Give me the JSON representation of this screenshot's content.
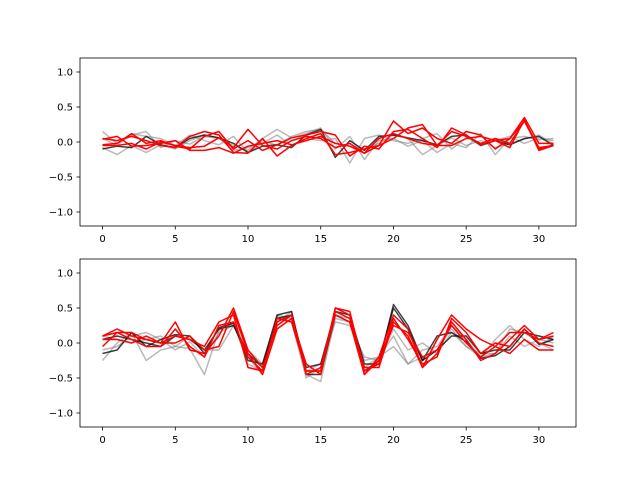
{
  "chart_data": [
    {
      "type": "line",
      "xlim": [
        -1.55,
        32.55
      ],
      "ylim": [
        -1.2,
        1.2
      ],
      "xticks": [
        0,
        5,
        10,
        15,
        20,
        25,
        30
      ],
      "xtick_labels": [
        "0",
        "5",
        "10",
        "15",
        "20",
        "25",
        "30"
      ],
      "yticks": [
        1.0,
        0.5,
        0.0,
        -0.5,
        -1.0
      ],
      "ytick_labels": [
        "1.0",
        "0.5",
        "0.0",
        "−0.5",
        "−1.0"
      ],
      "grid": false,
      "colors": {
        "faded": "#808080",
        "dark": "#000000",
        "red": "#ff0000"
      },
      "series": [
        {
          "color": "faded",
          "alpha": 0.55,
          "values": [
            0.15,
            -0.02,
            0.1,
            0.15,
            -0.08,
            0.02,
            -0.03,
            0.08,
            0.05,
            -0.05,
            -0.12,
            0.05,
            0.18,
            0.06,
            0.12,
            0.2,
            -0.1,
            0.08,
            -0.25,
            0.02,
            0.05,
            -0.06,
            0.02,
            -0.15,
            -0.02,
            -0.08,
            0.12,
            -0.18,
            0.05,
            0.08,
            0.03,
            0.05
          ]
        },
        {
          "color": "faded",
          "alpha": 0.55,
          "values": [
            -0.08,
            -0.18,
            -0.05,
            -0.15,
            -0.04,
            -0.1,
            0.02,
            0.1,
            0.06,
            -0.12,
            -0.08,
            0.02,
            -0.05,
            0.08,
            0.15,
            0.18,
            -0.02,
            -0.06,
            -0.1,
            -0.02,
            0.1,
            0.05,
            -0.18,
            -0.05,
            0.06,
            -0.05,
            0.02,
            -0.08,
            -0.02,
            0.04,
            0.1,
            -0.03
          ]
        },
        {
          "color": "faded",
          "alpha": 0.55,
          "values": [
            0.05,
            -0.05,
            0.12,
            0.08,
            0.05,
            -0.05,
            0.1,
            0.02,
            -0.04,
            0.08,
            -0.15,
            -0.02,
            0.1,
            -0.05,
            0.05,
            0.02,
            0.05,
            -0.3,
            0.05,
            0.1,
            0.02,
            -0.02,
            0.05,
            0.12,
            -0.1,
            0.06,
            -0.04,
            0.02,
            0.08,
            -0.02,
            0.06,
            0.02
          ]
        },
        {
          "color": "dark",
          "alpha": 0.75,
          "values": [
            -0.1,
            -0.06,
            -0.08,
            0.08,
            -0.04,
            -0.08,
            0.05,
            0.1,
            0.06,
            -0.02,
            -0.15,
            -0.06,
            -0.04,
            -0.08,
            0.1,
            0.18,
            -0.22,
            0.02,
            -0.12,
            0.08,
            0.1,
            0.06,
            0.02,
            -0.04,
            0.08,
            0.1,
            -0.05,
            0.02,
            -0.04,
            0.05,
            0.08,
            -0.05
          ]
        },
        {
          "color": "red",
          "alpha": 1,
          "values": [
            0.05,
            0.02,
            0.08,
            0.02,
            -0.05,
            -0.08,
            0.08,
            0.15,
            0.1,
            -0.15,
            -0.16,
            0.05,
            -0.2,
            -0.05,
            0.05,
            0.12,
            -0.18,
            -0.15,
            -0.1,
            -0.05,
            0.3,
            0.12,
            0.2,
            0.05,
            -0.02,
            0.15,
            0.1,
            -0.1,
            0.05,
            0.35,
            -0.02,
            -0.02
          ]
        },
        {
          "color": "red",
          "alpha": 1,
          "values": [
            -0.05,
            -0.05,
            -0.02,
            -0.1,
            0.0,
            -0.05,
            -0.08,
            -0.06,
            0.06,
            -0.08,
            0.18,
            -0.05,
            -0.1,
            0.02,
            0.08,
            0.05,
            -0.08,
            -0.02,
            -0.16,
            -0.05,
            0.05,
            0.2,
            0.25,
            -0.05,
            -0.05,
            0.05,
            0.08,
            0.02,
            0.05,
            0.3,
            -0.08,
            -0.05
          ]
        },
        {
          "color": "red",
          "alpha": 1,
          "values": [
            -0.04,
            -0.02,
            0.12,
            -0.02,
            0.02,
            -0.06,
            -0.1,
            0.08,
            0.15,
            -0.1,
            0.02,
            -0.12,
            -0.04,
            0.06,
            0.1,
            0.15,
            0.1,
            -0.2,
            -0.06,
            -0.1,
            0.15,
            0.18,
            0.05,
            -0.08,
            0.2,
            0.1,
            -0.04,
            0.02,
            -0.08,
            0.32,
            -0.12,
            -0.05
          ]
        },
        {
          "color": "red",
          "alpha": 1,
          "values": [
            0.04,
            0.08,
            -0.06,
            -0.05,
            -0.02,
            0.02,
            -0.12,
            -0.12,
            -0.08,
            -0.16,
            -0.06,
            -0.02,
            0.02,
            -0.04,
            0.02,
            0.08,
            -0.02,
            -0.06,
            -0.16,
            0.05,
            0.12,
            0.05,
            -0.02,
            -0.05,
            0.15,
            0.08,
            -0.02,
            0.05,
            -0.02,
            0.3,
            -0.1,
            -0.04
          ]
        }
      ]
    },
    {
      "type": "line",
      "xlim": [
        -1.55,
        32.55
      ],
      "ylim": [
        -1.2,
        1.2
      ],
      "xticks": [
        0,
        5,
        10,
        15,
        20,
        25,
        30
      ],
      "xtick_labels": [
        "0",
        "5",
        "10",
        "15",
        "20",
        "25",
        "30"
      ],
      "yticks": [
        1.0,
        0.5,
        0.0,
        -0.5,
        -1.0
      ],
      "ytick_labels": [
        "1.0",
        "0.5",
        "0.0",
        "−0.5",
        "−1.0"
      ],
      "grid": false,
      "colors": {
        "faded": "#808080",
        "dark": "#000000",
        "red": "#ff0000"
      },
      "series": [
        {
          "color": "faded",
          "alpha": 0.55,
          "values": [
            -0.25,
            0.0,
            0.15,
            -0.25,
            -0.1,
            -0.05,
            -0.08,
            -0.45,
            0.18,
            0.3,
            -0.3,
            -0.4,
            0.38,
            0.3,
            -0.5,
            -0.35,
            0.4,
            0.35,
            -0.25,
            -0.2,
            0.1,
            -0.3,
            -0.2,
            -0.1,
            0.2,
            -0.05,
            -0.15,
            -0.15,
            0.2,
            0.15,
            0.0,
            -0.1
          ]
        },
        {
          "color": "faded",
          "alpha": 0.55,
          "values": [
            -0.1,
            -0.05,
            0.1,
            0.15,
            0.05,
            -0.1,
            0.02,
            -0.2,
            0.15,
            0.25,
            -0.2,
            -0.45,
            0.4,
            0.35,
            -0.45,
            -0.55,
            0.35,
            0.3,
            -0.35,
            -0.2,
            -0.05,
            -0.3,
            -0.1,
            -0.05,
            0.25,
            0.05,
            -0.2,
            0.05,
            0.25,
            0.05,
            -0.05,
            0.1
          ]
        },
        {
          "color": "faded",
          "alpha": 0.55,
          "values": [
            0.1,
            0.05,
            0.0,
            0.05,
            0.1,
            -0.05,
            0.1,
            -0.1,
            -0.1,
            0.25,
            -0.1,
            -0.3,
            0.3,
            0.45,
            -0.4,
            -0.3,
            0.3,
            0.25,
            -0.2,
            -0.25,
            0.2,
            -0.1,
            0.0,
            -0.15,
            0.15,
            -0.05,
            -0.2,
            -0.15,
            0.1,
            -0.05,
            0.05,
            0.0
          ]
        },
        {
          "color": "dark",
          "alpha": 0.75,
          "values": [
            -0.15,
            -0.1,
            0.15,
            -0.05,
            0.05,
            0.12,
            0.1,
            -0.15,
            0.22,
            0.28,
            -0.25,
            -0.3,
            0.4,
            0.45,
            -0.45,
            -0.45,
            0.4,
            0.3,
            -0.4,
            -0.25,
            0.5,
            0.2,
            -0.25,
            0.1,
            0.15,
            0.02,
            -0.22,
            -0.18,
            -0.05,
            0.2,
            -0.02,
            0.05
          ]
        },
        {
          "color": "dark",
          "alpha": 0.75,
          "values": [
            0.05,
            0.1,
            0.05,
            0.0,
            -0.05,
            0.1,
            0.05,
            -0.1,
            0.2,
            0.25,
            -0.15,
            -0.35,
            0.35,
            0.4,
            -0.35,
            -0.3,
            0.45,
            0.4,
            -0.3,
            -0.3,
            0.55,
            0.25,
            -0.25,
            -0.1,
            0.1,
            0.1,
            -0.15,
            -0.1,
            -0.1,
            0.15,
            0.1,
            0.05
          ]
        },
        {
          "color": "red",
          "alpha": 1,
          "values": [
            0.1,
            0.2,
            0.1,
            0.05,
            0.0,
            0.3,
            -0.1,
            -0.15,
            0.1,
            0.5,
            -0.1,
            -0.35,
            0.25,
            0.4,
            -0.4,
            -0.4,
            0.5,
            0.4,
            -0.45,
            -0.2,
            0.4,
            0.2,
            -0.35,
            0.05,
            0.4,
            0.2,
            0.05,
            -0.05,
            0.15,
            0.15,
            0.05,
            0.15
          ]
        },
        {
          "color": "red",
          "alpha": 1,
          "values": [
            0.05,
            0.05,
            0.0,
            0.1,
            0.0,
            0.1,
            0.05,
            -0.05,
            0.3,
            0.4,
            -0.35,
            -0.4,
            0.3,
            0.4,
            -0.45,
            -0.35,
            0.45,
            0.35,
            -0.35,
            -0.35,
            0.3,
            0.1,
            -0.35,
            -0.15,
            0.3,
            0.05,
            -0.25,
            -0.15,
            0.05,
            0.25,
            0.05,
            0.1
          ]
        },
        {
          "color": "red",
          "alpha": 1,
          "values": [
            -0.05,
            0.15,
            0.15,
            0.05,
            0.0,
            0.0,
            0.1,
            -0.1,
            -0.05,
            0.45,
            -0.15,
            -0.45,
            0.2,
            0.35,
            -0.3,
            -0.45,
            0.5,
            0.45,
            -0.4,
            -0.3,
            0.35,
            0.05,
            -0.3,
            -0.2,
            0.35,
            0.15,
            -0.15,
            0.0,
            -0.05,
            0.2,
            0.0,
            -0.05
          ]
        },
        {
          "color": "red",
          "alpha": 1,
          "values": [
            0.1,
            0.15,
            0.05,
            -0.05,
            -0.05,
            0.2,
            -0.05,
            -0.2,
            0.25,
            0.3,
            -0.2,
            -0.4,
            0.35,
            0.3,
            -0.4,
            -0.4,
            0.4,
            0.3,
            -0.45,
            -0.25,
            0.25,
            0.15,
            -0.2,
            -0.1,
            0.25,
            0.0,
            -0.2,
            -0.05,
            -0.15,
            0.05,
            -0.1,
            -0.1
          ]
        }
      ]
    }
  ]
}
